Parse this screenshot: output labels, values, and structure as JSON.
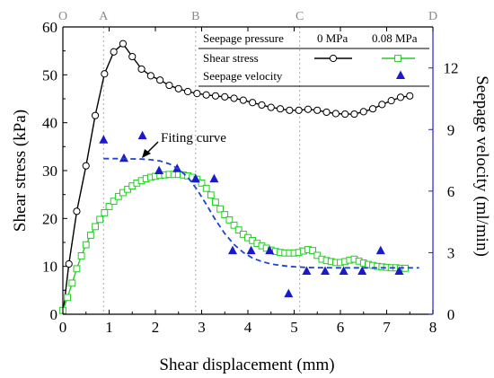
{
  "chart_data": {
    "type": "line",
    "xlabel": "Shear displacement (mm)",
    "ylabel": "Shear stress (kPa)",
    "y2label": "Seepage velocity (ml/min)",
    "xlim": [
      0,
      8
    ],
    "ylim": [
      0,
      60
    ],
    "y2lim": [
      0,
      14
    ],
    "xticks": [
      0,
      1,
      2,
      3,
      4,
      5,
      6,
      7,
      8
    ],
    "yticks": [
      0,
      10,
      20,
      30,
      40,
      50,
      60
    ],
    "y2ticks": [
      0,
      3,
      6,
      9,
      12
    ],
    "phase_markers": [
      {
        "label": "O",
        "x": 0
      },
      {
        "label": "A",
        "x": 0.88
      },
      {
        "label": "B",
        "x": 2.87
      },
      {
        "label": "C",
        "x": 5.12
      },
      {
        "label": "D",
        "x": 8
      }
    ],
    "legend": {
      "header": "Seepage pressure",
      "col1": "0 MPa",
      "col2": "0.08 MPa",
      "row1": "Shear stress",
      "row2": "Seepage velocity"
    },
    "annotation": "Fiting curve",
    "colors": {
      "series_0mpa": "#000000",
      "series_008mpa": "#22cc22",
      "velocity_markers": "#1a1acc",
      "fitting_curve": "#2244cc",
      "right_axis": "#2222cc",
      "phase_lines": "#aaaaaa"
    },
    "series": [
      {
        "name": "Shear stress 0 MPa",
        "axis": "left",
        "marker": "circle",
        "x": [
          0,
          0.13,
          0.3,
          0.5,
          0.7,
          0.9,
          1.1,
          1.3,
          1.5,
          1.7,
          1.9,
          2.1,
          2.3,
          2.5,
          2.7,
          2.9,
          3.1,
          3.3,
          3.5,
          3.7,
          3.9,
          4.1,
          4.3,
          4.5,
          4.7,
          4.9,
          5.1,
          5.3,
          5.5,
          5.7,
          5.9,
          6.1,
          6.3,
          6.5,
          6.7,
          6.9,
          7.1,
          7.3,
          7.5
        ],
        "y": [
          0,
          10.5,
          21.5,
          31,
          41.5,
          50.2,
          54.8,
          56.5,
          53.8,
          51.2,
          49.8,
          48.9,
          47.8,
          47.1,
          46.5,
          46.1,
          45.8,
          45.6,
          45.4,
          45.1,
          44.7,
          44.2,
          43.7,
          43.2,
          42.9,
          42.6,
          42.6,
          42.8,
          42.6,
          42.2,
          41.9,
          41.8,
          41.8,
          42.3,
          42.9,
          43.8,
          44.6,
          45.3,
          45.6
        ]
      },
      {
        "name": "Shear stress 0.08 MPa",
        "axis": "left",
        "marker": "square",
        "x": [
          0,
          0.1,
          0.2,
          0.3,
          0.4,
          0.5,
          0.6,
          0.7,
          0.8,
          0.9,
          1.0,
          1.1,
          1.2,
          1.3,
          1.4,
          1.5,
          1.6,
          1.7,
          1.8,
          1.9,
          2.0,
          2.1,
          2.2,
          2.3,
          2.4,
          2.5,
          2.6,
          2.7,
          2.8,
          2.9,
          3.0,
          3.1,
          3.2,
          3.3,
          3.4,
          3.5,
          3.6,
          3.7,
          3.8,
          3.9,
          4.0,
          4.1,
          4.2,
          4.3,
          4.4,
          4.5,
          4.6,
          4.7,
          4.8,
          4.9,
          5.0,
          5.1,
          5.2,
          5.3,
          5.4,
          5.5,
          5.6,
          5.7,
          5.8,
          5.9,
          6.0,
          6.1,
          6.2,
          6.3,
          6.4,
          6.5,
          6.6,
          6.7,
          6.8,
          6.9,
          7.0,
          7.1,
          7.2,
          7.3,
          7.4
        ],
        "y": [
          0.8,
          3.5,
          6.5,
          9.5,
          12.2,
          14.5,
          16.5,
          18.3,
          19.8,
          21.2,
          22.5,
          23.6,
          24.6,
          25.4,
          26.1,
          26.8,
          27.4,
          27.9,
          28.3,
          28.6,
          28.8,
          29.0,
          29.1,
          29.2,
          29.2,
          29.2,
          29.1,
          28.9,
          28.6,
          28.2,
          27.4,
          26.3,
          24.9,
          23.4,
          22.0,
          20.8,
          19.7,
          18.6,
          17.6,
          16.7,
          16.0,
          15.4,
          14.8,
          14.3,
          13.8,
          13.4,
          13.1,
          12.9,
          12.8,
          12.8,
          12.8,
          12.9,
          13.2,
          13.5,
          13.3,
          12.3,
          11.5,
          11.2,
          11.0,
          10.8,
          10.8,
          11.0,
          11.3,
          11.5,
          11.1,
          10.7,
          10.4,
          10.2,
          10.0,
          9.9,
          9.8,
          9.7,
          9.7,
          9.6,
          9.6
        ]
      },
      {
        "name": "Seepage velocity 0.08 MPa",
        "axis": "right",
        "marker": "triangle",
        "x": [
          0.88,
          1.32,
          1.72,
          2.08,
          2.47,
          2.87,
          3.27,
          3.67,
          4.07,
          4.47,
          4.88,
          5.27,
          5.67,
          6.07,
          6.47,
          6.87,
          7.27
        ],
        "y": [
          8.5,
          7.6,
          8.7,
          7.0,
          7.1,
          6.6,
          6.6,
          3.1,
          3.1,
          3.1,
          1.0,
          2.1,
          2.1,
          2.1,
          2.1,
          3.1,
          2.1
        ]
      },
      {
        "name": "Fitting curve",
        "axis": "right",
        "style": "dashed",
        "x": [
          0.88,
          1.1,
          1.3,
          1.5,
          1.7,
          1.9,
          2.1,
          2.3,
          2.5,
          2.7,
          2.9,
          3.1,
          3.3,
          3.5,
          3.7,
          3.9,
          4.1,
          4.3,
          4.5,
          4.7,
          4.9,
          5.1,
          5.3,
          5.5,
          5.7,
          5.9,
          6.1,
          6.3,
          6.5,
          6.7,
          6.9,
          7.1,
          7.3,
          7.5,
          7.7
        ],
        "y": [
          7.58,
          7.58,
          7.58,
          7.57,
          7.56,
          7.53,
          7.47,
          7.33,
          7.08,
          6.67,
          6.08,
          5.35,
          4.6,
          3.93,
          3.4,
          3.01,
          2.74,
          2.57,
          2.45,
          2.38,
          2.33,
          2.3,
          2.28,
          2.27,
          2.27,
          2.26,
          2.26,
          2.26,
          2.26,
          2.26,
          2.26,
          2.26,
          2.26,
          2.26,
          2.26
        ]
      }
    ]
  }
}
